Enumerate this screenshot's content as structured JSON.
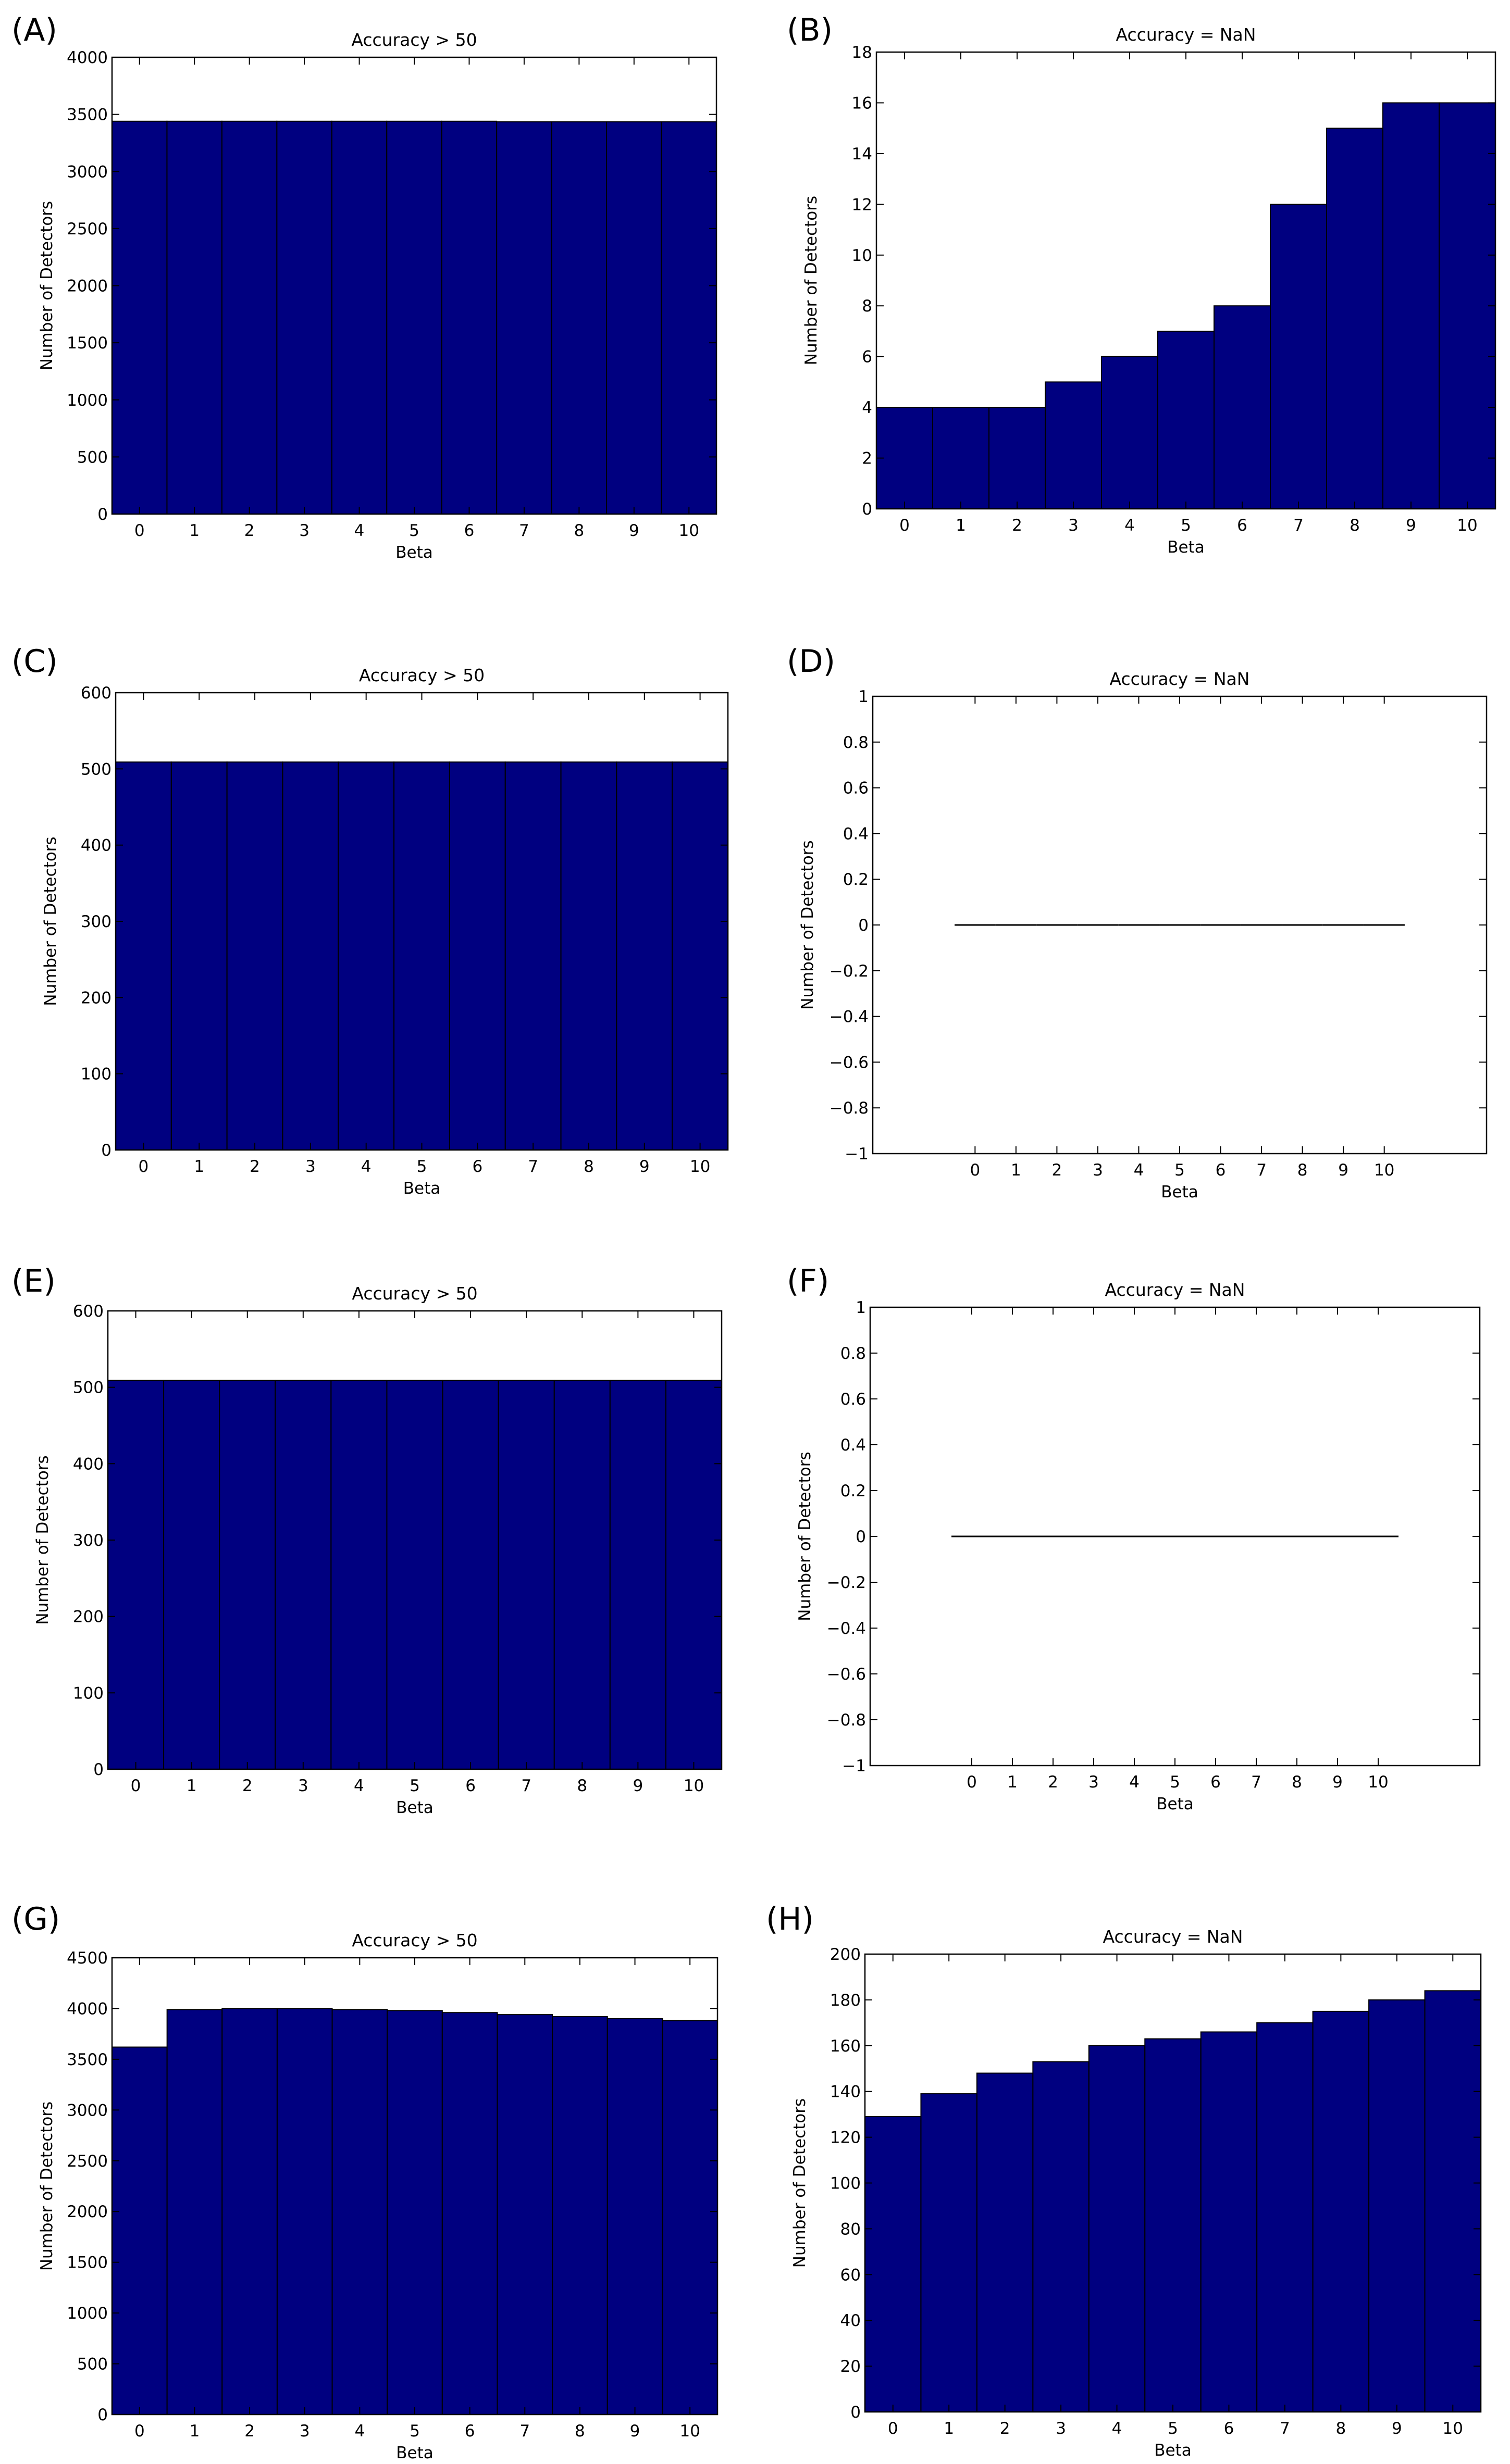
{
  "colors": {
    "bar": "#000080",
    "bar_edge": "#000000",
    "axis": "#000000",
    "background": "#ffffff"
  },
  "chart_data": [
    {
      "panel": "(A)",
      "type": "bar",
      "title": "Accuracy > 50",
      "xlabel": "Beta",
      "ylabel": "Number of Detectors",
      "categories": [
        "0",
        "1",
        "2",
        "3",
        "4",
        "5",
        "6",
        "7",
        "8",
        "9",
        "10"
      ],
      "values": [
        3440,
        3440,
        3440,
        3440,
        3440,
        3440,
        3440,
        3435,
        3435,
        3435,
        3435
      ],
      "ylim": [
        0,
        4000
      ],
      "yticks": [
        "0",
        "500",
        "1000",
        "1500",
        "2000",
        "2500",
        "3000",
        "3500",
        "4000"
      ],
      "grid": false
    },
    {
      "panel": "(B)",
      "type": "bar",
      "title": "Accuracy = NaN",
      "xlabel": "Beta",
      "ylabel": "Number of Detectors",
      "categories": [
        "0",
        "1",
        "2",
        "3",
        "4",
        "5",
        "6",
        "7",
        "8",
        "9",
        "10"
      ],
      "values": [
        4,
        4,
        4,
        5,
        6,
        7,
        8,
        12,
        15,
        16,
        16
      ],
      "ylim": [
        0,
        18
      ],
      "yticks": [
        "0",
        "2",
        "4",
        "6",
        "8",
        "10",
        "12",
        "14",
        "16",
        "18"
      ],
      "grid": false
    },
    {
      "panel": "(C)",
      "type": "bar",
      "title": "Accuracy > 50",
      "xlabel": "Beta",
      "ylabel": "Number of Detectors",
      "categories": [
        "0",
        "1",
        "2",
        "3",
        "4",
        "5",
        "6",
        "7",
        "8",
        "9",
        "10"
      ],
      "values": [
        509,
        509,
        509,
        509,
        509,
        509,
        509,
        509,
        509,
        509,
        509
      ],
      "ylim": [
        0,
        600
      ],
      "yticks": [
        "0",
        "100",
        "200",
        "300",
        "400",
        "500",
        "600"
      ],
      "grid": false
    },
    {
      "panel": "(D)",
      "type": "bar",
      "title": "Accuracy = NaN",
      "xlabel": "Beta",
      "ylabel": "Number of Detectors",
      "categories": [
        "0",
        "1",
        "2",
        "3",
        "4",
        "5",
        "6",
        "7",
        "8",
        "9",
        "10"
      ],
      "values": [
        0,
        0,
        0,
        0,
        0,
        0,
        0,
        0,
        0,
        0,
        0
      ],
      "ylim": [
        -1,
        1
      ],
      "yticks": [
        "−1",
        "−0.8",
        "−0.6",
        "−0.4",
        "−0.2",
        "0",
        "0.2",
        "0.4",
        "0.6",
        "0.8",
        "1"
      ],
      "xlim": [
        -2.5,
        12.5
      ],
      "grid": false
    },
    {
      "panel": "(E)",
      "type": "bar",
      "title": "Accuracy > 50",
      "xlabel": "Beta",
      "ylabel": "Number of Detectors",
      "categories": [
        "0",
        "1",
        "2",
        "3",
        "4",
        "5",
        "6",
        "7",
        "8",
        "9",
        "10"
      ],
      "values": [
        509,
        509,
        509,
        509,
        509,
        509,
        509,
        509,
        509,
        509,
        509
      ],
      "ylim": [
        0,
        600
      ],
      "yticks": [
        "0",
        "100",
        "200",
        "300",
        "400",
        "500",
        "600"
      ],
      "grid": false
    },
    {
      "panel": "(F)",
      "type": "bar",
      "title": "Accuracy = NaN",
      "xlabel": "Beta",
      "ylabel": "Number of Detectors",
      "categories": [
        "0",
        "1",
        "2",
        "3",
        "4",
        "5",
        "6",
        "7",
        "8",
        "9",
        "10"
      ],
      "values": [
        0,
        0,
        0,
        0,
        0,
        0,
        0,
        0,
        0,
        0,
        0
      ],
      "ylim": [
        -1,
        1
      ],
      "yticks": [
        "−1",
        "−0.8",
        "−0.6",
        "−0.4",
        "−0.2",
        "0",
        "0.2",
        "0.4",
        "0.6",
        "0.8",
        "1"
      ],
      "xlim": [
        -2.5,
        12.5
      ],
      "grid": false
    },
    {
      "panel": "(G)",
      "type": "bar",
      "title": "Accuracy > 50",
      "xlabel": "Beta",
      "ylabel": "Number of Detectors",
      "categories": [
        "0",
        "1",
        "2",
        "3",
        "4",
        "5",
        "6",
        "7",
        "8",
        "9",
        "10"
      ],
      "values": [
        3620,
        3990,
        4000,
        4000,
        3990,
        3980,
        3960,
        3940,
        3920,
        3900,
        3880
      ],
      "ylim": [
        0,
        4500
      ],
      "yticks": [
        "0",
        "500",
        "1000",
        "1500",
        "2000",
        "2500",
        "3000",
        "3500",
        "4000",
        "4500"
      ],
      "grid": false
    },
    {
      "panel": "(H)",
      "type": "bar",
      "title": "Accuracy = NaN",
      "xlabel": "Beta",
      "ylabel": "Number of Detectors",
      "categories": [
        "0",
        "1",
        "2",
        "3",
        "4",
        "5",
        "6",
        "7",
        "8",
        "9",
        "10"
      ],
      "values": [
        129,
        139,
        148,
        153,
        160,
        163,
        166,
        170,
        175,
        180,
        184
      ],
      "ylim": [
        0,
        200
      ],
      "yticks": [
        "0",
        "20",
        "40",
        "60",
        "80",
        "100",
        "120",
        "140",
        "160",
        "180",
        "200"
      ],
      "grid": false
    }
  ]
}
